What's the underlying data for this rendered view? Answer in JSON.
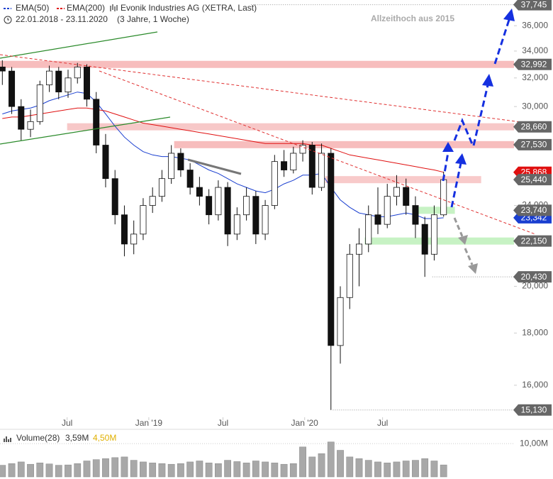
{
  "chart_data": [
    {
      "type": "candlestick",
      "title": "Evonik Industries AG (XETRA, Last)",
      "subtitle": "22.01.2018 - 23.11.2020",
      "span_label": "(3 Jahre, 1 Woche)",
      "annotation": "Allzeithoch aus 2015",
      "log": true,
      "ylim": [
        14790,
        38150
      ],
      "yticks": [
        {
          "value": 16000,
          "label": "16,000"
        },
        {
          "value": 18000,
          "label": "18,000"
        },
        {
          "value": 20000,
          "label": "20,000"
        },
        {
          "value": 24000,
          "label": "24,000"
        },
        {
          "value": 30000,
          "label": "30,000"
        },
        {
          "value": 32000,
          "label": "32,000"
        },
        {
          "value": 34000,
          "label": "34,000"
        },
        {
          "value": 36000,
          "label": "36,000"
        }
      ],
      "xlim": [
        -0.25,
        54.5
      ],
      "xticks": [
        {
          "value": 6.9,
          "label": "Jul"
        },
        {
          "value": 15.6,
          "label": "Jan '19"
        },
        {
          "value": 23.5,
          "label": "Jul"
        },
        {
          "value": 32.2,
          "label": "Jan '20"
        },
        {
          "value": 40.5,
          "label": "Jul"
        }
      ],
      "x": [
        0,
        1,
        2,
        3,
        4,
        5,
        6,
        7,
        8,
        9,
        10,
        11,
        12,
        13,
        14,
        15,
        16,
        17,
        18,
        19,
        20,
        21,
        22,
        23,
        24,
        25,
        26,
        27,
        28,
        29,
        30,
        31,
        32,
        33,
        34,
        35,
        36,
        37,
        38,
        39,
        40,
        41,
        42,
        43,
        44,
        45,
        46,
        47
      ],
      "open": [
        32800,
        32500,
        30000,
        28500,
        29000,
        31500,
        32500,
        31000,
        32000,
        32800,
        30500,
        27500,
        25500,
        23500,
        22000,
        22500,
        24000,
        24500,
        25500,
        27000,
        26000,
        25000,
        24500,
        23500,
        25000,
        22500,
        23500,
        24500,
        22500,
        24000,
        26500,
        26000,
        27000,
        27500,
        25000,
        27000,
        17500,
        19500,
        21500,
        22000,
        23500,
        23000,
        24500,
        25000,
        24000,
        23000,
        21500,
        23500
      ],
      "high": [
        33300,
        32800,
        30500,
        29800,
        31800,
        32900,
        32800,
        32600,
        33100,
        33000,
        31000,
        28200,
        26000,
        24000,
        23200,
        24400,
        25000,
        26000,
        27500,
        27300,
        26400,
        25600,
        24900,
        25400,
        25300,
        23900,
        25000,
        24800,
        24300,
        26900,
        27200,
        27400,
        27800,
        27700,
        27600,
        27300,
        20000,
        22000,
        22800,
        24000,
        25000,
        25200,
        25700,
        25500,
        24500,
        23400,
        24000,
        25900
      ],
      "low": [
        31500,
        29500,
        27800,
        28000,
        28800,
        31000,
        30500,
        30600,
        31600,
        30000,
        27000,
        25000,
        23000,
        21400,
        21500,
        22200,
        23600,
        24200,
        25200,
        25600,
        24600,
        24000,
        23000,
        23200,
        21900,
        22200,
        23200,
        22000,
        22200,
        23800,
        25600,
        25800,
        26500,
        24600,
        24800,
        15130,
        16800,
        19000,
        20000,
        21600,
        22500,
        22800,
        24000,
        23500,
        22300,
        20430,
        21200,
        23400
      ],
      "close": [
        32500,
        30000,
        28500,
        29000,
        31500,
        32500,
        31000,
        32000,
        32800,
        30500,
        27500,
        25500,
        23500,
        22000,
        22500,
        24000,
        24500,
        25500,
        27000,
        26000,
        25000,
        24500,
        23500,
        25000,
        22500,
        23500,
        24500,
        22500,
        24000,
        26500,
        26000,
        27000,
        27500,
        25000,
        27000,
        17500,
        19500,
        21500,
        22000,
        23500,
        23000,
        24500,
        25000,
        24000,
        23000,
        21500,
        23500,
        25440
      ],
      "series": [
        {
          "name": "EMA(50)",
          "color": "#1a3fd0",
          "last_label": "23,342",
          "values": [
            29500,
            29700,
            29800,
            29900,
            30100,
            30400,
            30600,
            30800,
            31000,
            30900,
            30300,
            29500,
            28700,
            28000,
            27500,
            27100,
            26900,
            26800,
            26800,
            26700,
            26600,
            26300,
            26000,
            25800,
            25500,
            25200,
            25000,
            24800,
            24700,
            24900,
            25200,
            25400,
            25700,
            25700,
            25800,
            25000,
            24300,
            23900,
            23600,
            23500,
            23400,
            23400,
            23500,
            23600,
            23500,
            23300,
            23300,
            23342
          ]
        },
        {
          "name": "EMA(200)",
          "color": "#e01010",
          "last_label": "25,868",
          "values": [
            29200,
            29300,
            29300,
            29400,
            29500,
            29600,
            29700,
            29800,
            29900,
            29900,
            29800,
            29700,
            29500,
            29300,
            29100,
            28900,
            28800,
            28700,
            28600,
            28500,
            28400,
            28300,
            28200,
            28100,
            28000,
            27900,
            27800,
            27700,
            27600,
            27600,
            27600,
            27600,
            27600,
            27500,
            27500,
            27300,
            27100,
            26900,
            26800,
            26700,
            26600,
            26500,
            26400,
            26300,
            26200,
            26100,
            26000,
            25868
          ]
        }
      ],
      "levels": [
        {
          "value": 37745,
          "label": "37,745",
          "from": 26.5,
          "style": "dotted",
          "color": "#999999"
        },
        {
          "value": 32992,
          "label": "32,992",
          "from": -0.25,
          "style": "band",
          "color": "#f4a7a7"
        },
        {
          "value": 28660,
          "label": "28,660",
          "from": 6.9,
          "style": "band",
          "color": "#f4b5b5"
        },
        {
          "value": 27530,
          "label": "27,530",
          "from": 18.3,
          "style": "band",
          "color": "#f4a7a7"
        },
        {
          "value": 25440,
          "label": "25,440",
          "from": 34.4,
          "to": 51,
          "style": "band",
          "color": "#f6b8b8"
        },
        {
          "value": 23740,
          "label": "23,740",
          "from": 44.2,
          "to": 48.2,
          "style": "band",
          "color": "#b4eeb0"
        },
        {
          "value": 22150,
          "label": "22,150",
          "from": 38.6,
          "style": "band",
          "color": "#b4eeb0"
        },
        {
          "value": 20430,
          "label": "20,430",
          "from": 45.8,
          "style": "dotted",
          "color": "#999999"
        },
        {
          "value": 15130,
          "label": "15,130",
          "from": 35.2,
          "style": "dotted",
          "color": "#999999"
        }
      ]
    },
    {
      "type": "bar",
      "title": "Volume(28)",
      "legend_values": [
        "3,59M",
        "4,50M"
      ],
      "legend_colors": [
        "#333333",
        "#e0b000"
      ],
      "color": "#a8a8a8",
      "xlim": [
        -0.25,
        54.5
      ],
      "ylim": [
        0,
        14300000
      ],
      "yticks": [
        {
          "value": 10000000,
          "label": "10,00M"
        }
      ],
      "values": [
        3500000,
        4000000,
        4500000,
        3800000,
        4200000,
        3900000,
        3500000,
        3600000,
        4000000,
        4800000,
        5200000,
        5500000,
        5800000,
        6000000,
        5000000,
        4500000,
        4200000,
        4000000,
        3800000,
        4000000,
        4500000,
        4800000,
        4200000,
        4000000,
        5000000,
        4600000,
        4200000,
        4800000,
        4500000,
        4200000,
        3800000,
        4000000,
        9000000,
        6000000,
        7000000,
        10500000,
        8000000,
        6000000,
        5500000,
        5000000,
        4500000,
        4200000,
        4500000,
        4800000,
        5000000,
        5500000,
        4800000,
        3600000
      ]
    }
  ]
}
